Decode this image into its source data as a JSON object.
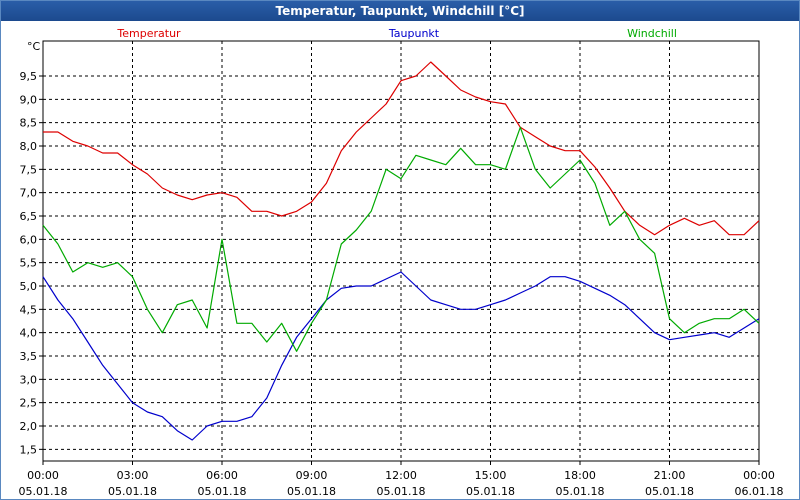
{
  "window": {
    "title": "Temperatur, Taupunkt, Windchill [°C]"
  },
  "chart_data": {
    "type": "line",
    "title": "Temperatur, Taupunkt, Windchill [°C]",
    "ylabel": "°C",
    "xlabel": "",
    "ylim": [
      1.25,
      10.25
    ],
    "xlim_hours": [
      0,
      24
    ],
    "grid": true,
    "y_ticks": [
      {
        "v": 1.5,
        "label": "1,5"
      },
      {
        "v": 2.0,
        "label": "2,0"
      },
      {
        "v": 2.5,
        "label": "2,5"
      },
      {
        "v": 3.0,
        "label": "3,0"
      },
      {
        "v": 3.5,
        "label": "3,5"
      },
      {
        "v": 4.0,
        "label": "4,0"
      },
      {
        "v": 4.5,
        "label": "4,5"
      },
      {
        "v": 5.0,
        "label": "5,0"
      },
      {
        "v": 5.5,
        "label": "5,5"
      },
      {
        "v": 6.0,
        "label": "6,0"
      },
      {
        "v": 6.5,
        "label": "6,5"
      },
      {
        "v": 7.0,
        "label": "7,0"
      },
      {
        "v": 7.5,
        "label": "7,5"
      },
      {
        "v": 8.0,
        "label": "8,0"
      },
      {
        "v": 8.5,
        "label": "8,5"
      },
      {
        "v": 9.0,
        "label": "9,0"
      },
      {
        "v": 9.5,
        "label": "9,5"
      }
    ],
    "x_ticks": [
      {
        "h": 0,
        "time": "00:00",
        "date": "05.01.18"
      },
      {
        "h": 3,
        "time": "03:00",
        "date": "05.01.18"
      },
      {
        "h": 6,
        "time": "06:00",
        "date": "05.01.18"
      },
      {
        "h": 9,
        "time": "09:00",
        "date": "05.01.18"
      },
      {
        "h": 12,
        "time": "12:00",
        "date": "05.01.18"
      },
      {
        "h": 15,
        "time": "15:00",
        "date": "05.01.18"
      },
      {
        "h": 18,
        "time": "18:00",
        "date": "05.01.18"
      },
      {
        "h": 21,
        "time": "21:00",
        "date": "05.01.18"
      },
      {
        "h": 24,
        "time": "00:00",
        "date": "06.01.18"
      }
    ],
    "legend": [
      {
        "name": "Temperatur",
        "color": "#dd0000",
        "placement": "top-left"
      },
      {
        "name": "Taupunkt",
        "color": "#0000cc",
        "placement": "top-center"
      },
      {
        "name": "Windchill",
        "color": "#00aa00",
        "placement": "top-right"
      }
    ],
    "series": [
      {
        "name": "Temperatur",
        "color": "#dd0000",
        "x": [
          0,
          0.5,
          1,
          1.5,
          2,
          2.5,
          3,
          3.5,
          4,
          4.5,
          5,
          5.5,
          6,
          6.5,
          7,
          7.5,
          8,
          8.5,
          9,
          9.5,
          10,
          10.5,
          11,
          11.5,
          12,
          12.5,
          13,
          13.5,
          14,
          14.5,
          15,
          15.5,
          16,
          16.5,
          17,
          17.5,
          18,
          18.5,
          19,
          19.5,
          20,
          20.5,
          21,
          21.5,
          22,
          22.5,
          23,
          23.5,
          24
        ],
        "values": [
          8.3,
          8.3,
          8.1,
          8.0,
          7.85,
          7.85,
          7.6,
          7.4,
          7.1,
          6.95,
          6.85,
          6.95,
          7.0,
          6.9,
          6.6,
          6.6,
          6.5,
          6.6,
          6.8,
          7.2,
          7.9,
          8.3,
          8.6,
          8.9,
          9.4,
          9.5,
          9.8,
          9.5,
          9.2,
          9.05,
          8.95,
          8.9,
          8.4,
          8.2,
          8.0,
          7.9,
          7.9,
          7.55,
          7.1,
          6.6,
          6.3,
          6.1,
          6.3,
          6.45,
          6.3,
          6.4,
          6.1,
          6.1,
          6.4
        ]
      },
      {
        "name": "Taupunkt",
        "color": "#0000cc",
        "x": [
          0,
          0.5,
          1,
          1.5,
          2,
          2.5,
          3,
          3.5,
          4,
          4.5,
          5,
          5.5,
          6,
          6.5,
          7,
          7.5,
          8,
          8.5,
          9,
          9.5,
          10,
          10.5,
          11,
          11.5,
          12,
          12.5,
          13,
          13.5,
          14,
          14.5,
          15,
          15.5,
          16,
          16.5,
          17,
          17.5,
          18,
          18.5,
          19,
          19.5,
          20,
          20.5,
          21,
          21.5,
          22,
          22.5,
          23,
          23.5,
          24
        ],
        "values": [
          5.2,
          4.7,
          4.3,
          3.8,
          3.3,
          2.9,
          2.5,
          2.3,
          2.2,
          1.9,
          1.7,
          2.0,
          2.1,
          2.1,
          2.2,
          2.6,
          3.3,
          3.9,
          4.3,
          4.7,
          4.95,
          5.0,
          5.0,
          5.15,
          5.3,
          5.0,
          4.7,
          4.6,
          4.5,
          4.5,
          4.6,
          4.7,
          4.85,
          5.0,
          5.2,
          5.2,
          5.1,
          4.95,
          4.8,
          4.6,
          4.3,
          4.0,
          3.85,
          3.9,
          3.95,
          4.0,
          3.9,
          4.1,
          4.3
        ]
      },
      {
        "name": "Windchill",
        "color": "#00aa00",
        "x": [
          0,
          0.5,
          1,
          1.5,
          2,
          2.5,
          3,
          3.5,
          4,
          4.5,
          5,
          5.5,
          6,
          6.5,
          7,
          7.5,
          8,
          8.5,
          9,
          9.5,
          10,
          10.5,
          11,
          11.5,
          12,
          12.5,
          13,
          13.5,
          14,
          14.5,
          15,
          15.5,
          16,
          16.5,
          17,
          17.5,
          18,
          18.5,
          19,
          19.5,
          20,
          20.5,
          21,
          21.5,
          22,
          22.5,
          23,
          23.5,
          24
        ],
        "values": [
          6.3,
          5.9,
          5.3,
          5.5,
          5.4,
          5.5,
          5.2,
          4.5,
          4.0,
          4.6,
          4.7,
          4.1,
          6.0,
          4.2,
          4.2,
          3.8,
          4.2,
          3.6,
          4.2,
          4.7,
          5.9,
          6.2,
          6.6,
          7.5,
          7.3,
          7.8,
          7.7,
          7.6,
          7.95,
          7.6,
          7.6,
          7.5,
          8.4,
          7.5,
          7.1,
          7.4,
          7.7,
          7.2,
          6.3,
          6.6,
          6.0,
          5.7,
          4.3,
          4.0,
          4.2,
          4.3,
          4.3,
          4.5,
          4.2
        ]
      }
    ]
  }
}
